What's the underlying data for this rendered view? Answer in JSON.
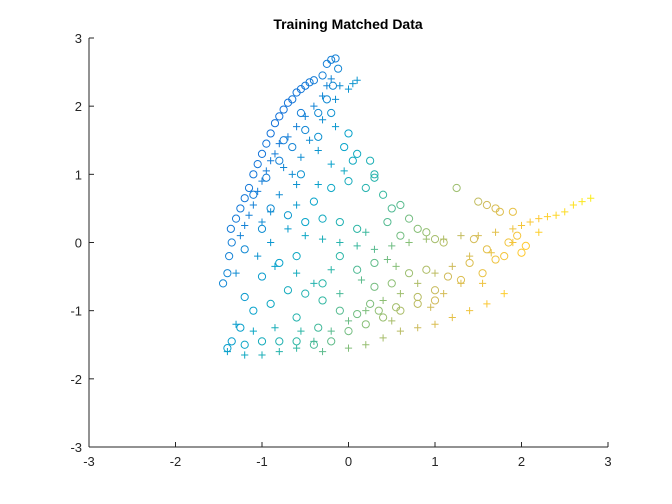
{
  "chart_data": {
    "type": "scatter",
    "title": "Training Matched Data",
    "xlabel": "",
    "ylabel": "",
    "xlim": [
      -3,
      3
    ],
    "ylim": [
      -3,
      3
    ],
    "xticks": [
      -3,
      -2,
      -1,
      0,
      1,
      2,
      3
    ],
    "yticks": [
      -3,
      -2,
      -1,
      0,
      1,
      2,
      3
    ],
    "xtick_labels": [
      "-3",
      "-2",
      "-1",
      "0",
      "1",
      "2",
      "3"
    ],
    "ytick_labels": [
      "-3",
      "-2",
      "-1",
      "0",
      "1",
      "2",
      "3"
    ],
    "grid": false,
    "legend": "none",
    "colormap": [
      "#352a87",
      "#0f5cdd",
      "#1481d6",
      "#06a4ca",
      "#2eb7a4",
      "#87bf77",
      "#d1bb59",
      "#fec832",
      "#f9fb0e"
    ],
    "series": [
      {
        "marker": "circle",
        "points": [
          [
            -1.45,
            -0.6
          ],
          [
            -1.4,
            -0.45
          ],
          [
            -1.38,
            -0.2
          ],
          [
            -1.35,
            0.0
          ],
          [
            -1.36,
            0.2
          ],
          [
            -1.3,
            0.35
          ],
          [
            -1.25,
            0.5
          ],
          [
            -1.2,
            0.65
          ],
          [
            -1.15,
            0.8
          ],
          [
            -1.1,
            1.0
          ],
          [
            -1.05,
            1.15
          ],
          [
            -1.0,
            1.3
          ],
          [
            -0.95,
            1.45
          ],
          [
            -0.9,
            1.6
          ],
          [
            -0.85,
            1.75
          ],
          [
            -0.8,
            1.85
          ],
          [
            -0.75,
            1.95
          ],
          [
            -0.7,
            2.05
          ],
          [
            -0.65,
            2.1
          ],
          [
            -0.6,
            2.2
          ],
          [
            -0.55,
            2.25
          ],
          [
            -0.5,
            2.3
          ],
          [
            -0.45,
            2.35
          ],
          [
            -0.4,
            2.38
          ],
          [
            -0.3,
            2.45
          ],
          [
            -0.25,
            2.62
          ],
          [
            -0.2,
            2.68
          ],
          [
            -0.15,
            2.7
          ],
          [
            -0.12,
            2.55
          ],
          [
            -0.18,
            2.3
          ],
          [
            -0.25,
            2.1
          ],
          [
            -0.35,
            1.9
          ],
          [
            -0.5,
            1.65
          ],
          [
            -0.65,
            1.4
          ],
          [
            -0.8,
            1.2
          ],
          [
            -0.95,
            0.95
          ],
          [
            -1.1,
            0.7
          ],
          [
            -0.9,
            0.5
          ],
          [
            -0.7,
            0.4
          ],
          [
            -0.5,
            0.3
          ],
          [
            -0.3,
            0.35
          ],
          [
            -0.1,
            0.3
          ],
          [
            0.1,
            0.2
          ],
          [
            -0.2,
            0.8
          ],
          [
            0.0,
            0.9
          ],
          [
            0.2,
            0.8
          ],
          [
            0.3,
            1.0
          ],
          [
            0.05,
            1.2
          ],
          [
            -0.05,
            1.4
          ],
          [
            0.0,
            1.6
          ],
          [
            0.1,
            1.3
          ],
          [
            0.25,
            1.2
          ],
          [
            0.3,
            0.95
          ],
          [
            0.4,
            0.7
          ],
          [
            0.5,
            0.5
          ],
          [
            0.6,
            0.55
          ],
          [
            0.7,
            0.35
          ],
          [
            0.8,
            0.2
          ],
          [
            0.9,
            0.15
          ],
          [
            1.0,
            0.05
          ],
          [
            1.1,
            0.0
          ],
          [
            1.25,
            0.8
          ],
          [
            1.5,
            0.6
          ],
          [
            1.6,
            0.55
          ],
          [
            1.7,
            0.5
          ],
          [
            1.75,
            0.45
          ],
          [
            1.9,
            0.45
          ],
          [
            1.95,
            0.1
          ],
          [
            1.85,
            0.0
          ],
          [
            1.6,
            -0.1
          ],
          [
            1.4,
            -0.3
          ],
          [
            1.7,
            -0.25
          ],
          [
            2.0,
            -0.15
          ],
          [
            2.05,
            -0.05
          ],
          [
            1.8,
            -0.2
          ],
          [
            1.55,
            -0.45
          ],
          [
            1.3,
            -0.55
          ],
          [
            1.0,
            -0.7
          ],
          [
            0.8,
            -0.8
          ],
          [
            0.55,
            -0.95
          ],
          [
            0.35,
            -1.0
          ],
          [
            0.1,
            -1.05
          ],
          [
            -0.1,
            -1.0
          ],
          [
            -0.3,
            -0.85
          ],
          [
            -0.5,
            -0.75
          ],
          [
            -0.7,
            -0.7
          ],
          [
            -0.9,
            -0.9
          ],
          [
            -1.1,
            -1.0
          ],
          [
            -1.25,
            -1.25
          ],
          [
            -1.35,
            -1.45
          ],
          [
            -1.4,
            -1.55
          ],
          [
            -1.2,
            -1.5
          ],
          [
            -1.0,
            -1.45
          ],
          [
            -0.8,
            -1.45
          ],
          [
            -0.6,
            -1.45
          ],
          [
            -0.4,
            -1.5
          ],
          [
            -0.2,
            -1.45
          ],
          [
            0.0,
            -1.3
          ],
          [
            0.2,
            -1.2
          ],
          [
            0.4,
            -1.1
          ],
          [
            0.6,
            -1.0
          ],
          [
            0.8,
            -0.9
          ],
          [
            1.0,
            -0.85
          ],
          [
            0.3,
            -0.65
          ],
          [
            0.5,
            -0.6
          ],
          [
            0.1,
            -0.4
          ],
          [
            -0.1,
            -0.2
          ],
          [
            0.3,
            -0.3
          ],
          [
            0.7,
            -0.45
          ],
          [
            0.9,
            -0.4
          ],
          [
            -0.6,
            -0.2
          ],
          [
            -0.8,
            -0.3
          ],
          [
            -1.0,
            -0.5
          ],
          [
            -1.2,
            -0.8
          ],
          [
            -0.6,
            -1.1
          ],
          [
            -0.35,
            -1.25
          ],
          [
            0.25,
            -0.9
          ],
          [
            1.15,
            -0.5
          ],
          [
            1.45,
            0.05
          ],
          [
            -0.4,
            0.6
          ],
          [
            -0.55,
            1.0
          ],
          [
            -0.75,
            1.5
          ],
          [
            -0.35,
            1.55
          ],
          [
            -0.2,
            1.9
          ],
          [
            -0.55,
            1.9
          ],
          [
            -1.0,
            0.2
          ],
          [
            -1.2,
            -0.1
          ],
          [
            -0.3,
            -0.6
          ],
          [
            0.6,
            0.1
          ],
          [
            0.45,
            0.3
          ]
        ]
      },
      {
        "marker": "plus",
        "points": [
          [
            -1.25,
            0.1
          ],
          [
            -1.2,
            0.25
          ],
          [
            -1.15,
            0.4
          ],
          [
            -1.1,
            0.55
          ],
          [
            -1.05,
            0.75
          ],
          [
            -1.0,
            0.9
          ],
          [
            -0.95,
            1.05
          ],
          [
            -0.9,
            1.2
          ],
          [
            -0.85,
            1.3
          ],
          [
            -0.8,
            1.45
          ],
          [
            -0.7,
            1.55
          ],
          [
            -0.6,
            1.7
          ],
          [
            -0.5,
            1.85
          ],
          [
            -0.4,
            2.0
          ],
          [
            -0.3,
            2.15
          ],
          [
            -0.25,
            2.3
          ],
          [
            -0.2,
            2.4
          ],
          [
            -0.1,
            2.3
          ],
          [
            0.0,
            2.25
          ],
          [
            0.05,
            2.33
          ],
          [
            0.1,
            2.38
          ],
          [
            -0.15,
            2.1
          ],
          [
            -0.3,
            1.8
          ],
          [
            -0.45,
            1.5
          ],
          [
            -0.55,
            1.25
          ],
          [
            -0.65,
            1.0
          ],
          [
            -0.8,
            0.7
          ],
          [
            -0.9,
            0.45
          ],
          [
            -1.0,
            0.3
          ],
          [
            -0.7,
            0.2
          ],
          [
            -0.5,
            0.1
          ],
          [
            -0.3,
            0.05
          ],
          [
            -0.1,
            0.0
          ],
          [
            0.1,
            -0.05
          ],
          [
            0.3,
            -0.1
          ],
          [
            0.5,
            -0.05
          ],
          [
            0.7,
            0.0
          ],
          [
            0.9,
            0.05
          ],
          [
            1.1,
            0.05
          ],
          [
            1.3,
            0.1
          ],
          [
            1.5,
            0.1
          ],
          [
            1.7,
            0.15
          ],
          [
            1.9,
            0.2
          ],
          [
            2.0,
            0.25
          ],
          [
            2.1,
            0.3
          ],
          [
            2.2,
            0.35
          ],
          [
            2.3,
            0.38
          ],
          [
            2.4,
            0.4
          ],
          [
            2.5,
            0.45
          ],
          [
            2.6,
            0.55
          ],
          [
            2.7,
            0.6
          ],
          [
            2.8,
            0.65
          ],
          [
            2.2,
            0.15
          ],
          [
            1.9,
            0.0
          ],
          [
            1.65,
            -0.15
          ],
          [
            1.4,
            -0.2
          ],
          [
            1.2,
            -0.35
          ],
          [
            1.0,
            -0.45
          ],
          [
            0.8,
            -0.6
          ],
          [
            0.6,
            -0.75
          ],
          [
            0.4,
            -0.85
          ],
          [
            0.2,
            -1.0
          ],
          [
            0.0,
            -1.15
          ],
          [
            -0.2,
            -1.3
          ],
          [
            -0.4,
            -1.45
          ],
          [
            -0.6,
            -1.55
          ],
          [
            -0.8,
            -1.6
          ],
          [
            -1.0,
            -1.65
          ],
          [
            -1.2,
            -1.65
          ],
          [
            -1.4,
            -1.6
          ],
          [
            -0.3,
            -1.6
          ],
          [
            0.0,
            -1.55
          ],
          [
            0.2,
            -1.5
          ],
          [
            0.4,
            -1.4
          ],
          [
            0.6,
            -1.3
          ],
          [
            0.8,
            -1.25
          ],
          [
            1.0,
            -1.2
          ],
          [
            1.2,
            -1.1
          ],
          [
            1.4,
            -1.0
          ],
          [
            1.6,
            -0.9
          ],
          [
            1.8,
            -0.75
          ],
          [
            1.3,
            -0.6
          ],
          [
            0.95,
            -0.95
          ],
          [
            0.5,
            -1.15
          ],
          [
            -0.1,
            -0.75
          ],
          [
            -0.4,
            -0.6
          ],
          [
            -0.6,
            -0.45
          ],
          [
            -0.85,
            -0.35
          ],
          [
            -1.05,
            -0.2
          ],
          [
            -1.3,
            -0.45
          ],
          [
            -1.3,
            -1.2
          ],
          [
            -1.1,
            -1.3
          ],
          [
            -0.85,
            -1.25
          ],
          [
            -0.55,
            -1.3
          ],
          [
            -0.2,
            -0.4
          ],
          [
            0.15,
            -0.55
          ],
          [
            0.55,
            -0.35
          ],
          [
            -0.9,
            0.0
          ],
          [
            -0.6,
            0.55
          ],
          [
            -0.35,
            0.85
          ],
          [
            -0.2,
            1.15
          ],
          [
            -0.05,
            1.05
          ],
          [
            -0.35,
            1.35
          ],
          [
            -0.75,
            1.1
          ],
          [
            -0.6,
            0.85
          ],
          [
            0.2,
            0.15
          ],
          [
            0.45,
            -0.25
          ],
          [
            1.1,
            -0.75
          ],
          [
            1.55,
            -0.6
          ],
          [
            -0.15,
            1.7
          ]
        ]
      }
    ]
  }
}
